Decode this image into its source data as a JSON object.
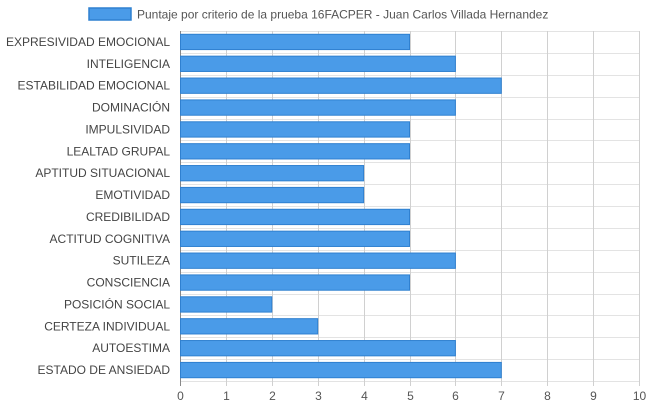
{
  "chart_data": {
    "type": "bar",
    "orientation": "horizontal",
    "title": "",
    "xlabel": "",
    "ylabel": "",
    "xlim": [
      0,
      10
    ],
    "x_ticks": [
      "0",
      "1",
      "2",
      "3",
      "4",
      "5",
      "6",
      "7",
      "8",
      "9",
      "10"
    ],
    "grid": true,
    "legend_position": "top",
    "categories": [
      "EXPRESIVIDAD EMOCIONAL",
      "INTELIGENCIA",
      "ESTABILIDAD EMOCIONAL",
      "DOMINACIÓN",
      "IMPULSIVIDAD",
      "LEALTAD GRUPAL",
      "APTITUD SITUACIONAL",
      "EMOTIVIDAD",
      "CREDIBILIDAD",
      "ACTITUD COGNITIVA",
      "SUTILEZA",
      "CONSCIENCIA",
      "POSICIÓN SOCIAL",
      "CERTEZA INDIVIDUAL",
      "AUTOESTIMA",
      "ESTADO DE ANSIEDAD"
    ],
    "series": [
      {
        "name": "Puntaje por criterio de la prueba 16FACPER - Juan Carlos Villada Hernandez",
        "color": "#4a9be8",
        "values": [
          5,
          6,
          7,
          6,
          5,
          5,
          4,
          4,
          5,
          5,
          6,
          5,
          2,
          3,
          6,
          7
        ]
      }
    ]
  }
}
